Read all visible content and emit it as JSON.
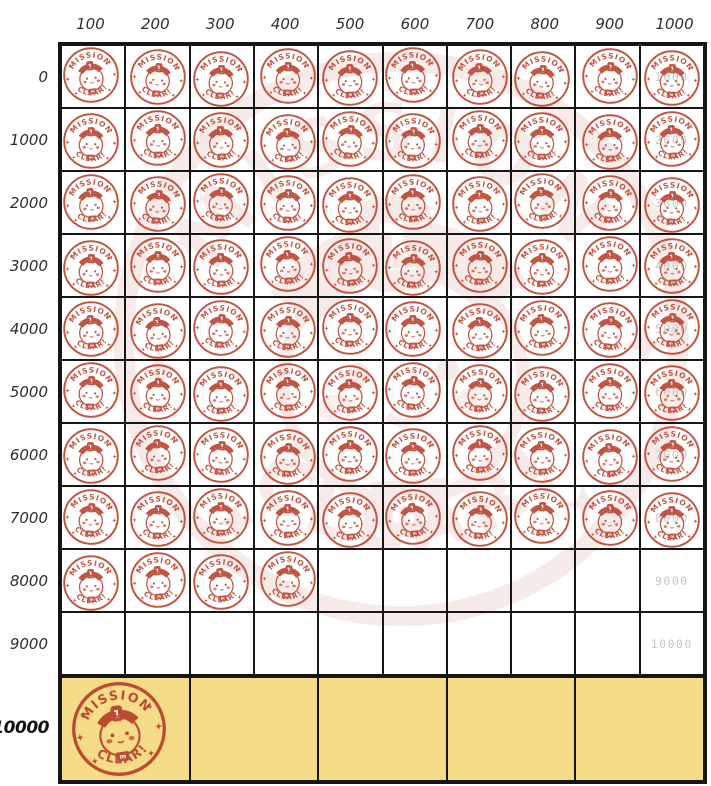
{
  "colors": {
    "stamp_red": "#bb4430",
    "cell_yellow": "#f5dc86",
    "grid_line": "#161616",
    "milestone_gray": "#c7c7c7",
    "header_text": "#2e2e2e"
  },
  "grid": {
    "column_headers": [
      "100",
      "200",
      "300",
      "400",
      "500",
      "600",
      "700",
      "800",
      "900",
      "1000"
    ],
    "row_headers": [
      "0",
      "1000",
      "2000",
      "3000",
      "4000",
      "5000",
      "6000",
      "7000",
      "8000",
      "9000"
    ],
    "milestone_labels": [
      "1000",
      "2000",
      "3000",
      "4000",
      "5000",
      "6000",
      "7000",
      "8000",
      "9000",
      "10000"
    ],
    "stamps_per_row": [
      10,
      10,
      10,
      10,
      10,
      10,
      10,
      10,
      4,
      0
    ]
  },
  "bottom_row": {
    "label_sign": "×",
    "label_value": "10000",
    "cells": 5,
    "stamped_cells": 1
  },
  "stamp": {
    "top_text": "MISSION",
    "bottom_text": "CLEAR!",
    "badge_text": "1",
    "bib_text": "m"
  },
  "watermark": {
    "type": "giant-stamp",
    "opacity": 0.1
  }
}
